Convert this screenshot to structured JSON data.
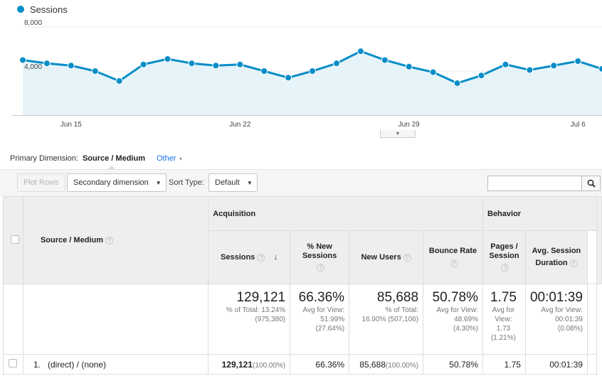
{
  "legend": {
    "label": "Sessions",
    "color": "#058dc7"
  },
  "chart_data": {
    "type": "area",
    "series": [
      {
        "name": "Sessions",
        "values": [
          5000,
          4700,
          4500,
          4000,
          3100,
          4600,
          5100,
          4700,
          4500,
          4600,
          4000,
          3400,
          4000,
          4700,
          5800,
          5000,
          4400,
          3900,
          2900,
          3600,
          4600,
          4100,
          4500,
          4900,
          4200
        ]
      },
      {
        "name": "",
        "values": []
      }
    ],
    "y_ticks": [
      "8,000",
      "4,000"
    ],
    "x_ticks": [
      "Jun 15",
      "Jun 22",
      "Jun 29",
      "Jul 6"
    ],
    "ylim": [
      0,
      8000
    ],
    "x_tick_indices": [
      2,
      9,
      16,
      23
    ],
    "color": "#058dc7",
    "fill": "#e6f3f9"
  },
  "dimensions": {
    "primary_label": "Primary Dimension:",
    "active": "Source / Medium",
    "other": "Other"
  },
  "toolbar": {
    "plot_rows": "Plot Rows",
    "secondary": "Secondary dimension",
    "sort_type_label": "Sort Type:",
    "sort_default": "Default"
  },
  "table": {
    "source_header": "Source / Medium",
    "groups": {
      "acquisition": "Acquisition",
      "behavior": "Behavior"
    },
    "columns": {
      "sessions": "Sessions",
      "new_sessions_1": "% New",
      "new_sessions_2": "Sessions",
      "new_users": "New Users",
      "bounce": "Bounce Rate",
      "pages_1": "Pages /",
      "pages_2": "Session",
      "duration_1": "Avg. Session",
      "duration_2": "Duration"
    },
    "totals": {
      "sessions": "129,121",
      "sessions_s1": "% of Total: 13.24%",
      "sessions_s2": "(975,380)",
      "new_sessions": "66.36%",
      "new_sessions_s1": "Avg for View:",
      "new_sessions_s2": "51.99%",
      "new_sessions_s3": "(27.64%)",
      "new_users": "85,688",
      "new_users_s1": "% of Total:",
      "new_users_s2": "16.90% (507,106)",
      "bounce": "50.78%",
      "bounce_s1": "Avg for View:",
      "bounce_s2": "48.69%",
      "bounce_s3": "(4.30%)",
      "pages": "1.75",
      "pages_s1": "Avg for",
      "pages_s2": "View:",
      "pages_s3": "1.73",
      "pages_s4": "(1.21%)",
      "duration": "00:01:39",
      "duration_s1": "Avg for View:",
      "duration_s2": "00:01:39",
      "duration_s3": "(0.08%)"
    },
    "rows": [
      {
        "index": "1.",
        "source": "(direct) / (none)",
        "sessions": "129,121",
        "sessions_pct": "(100.00%)",
        "new_sessions": "66.36%",
        "new_users": "85,688",
        "new_users_pct": "(100.00%)",
        "bounce": "50.78%",
        "pages": "1.75",
        "duration": "00:01:39"
      }
    ]
  }
}
